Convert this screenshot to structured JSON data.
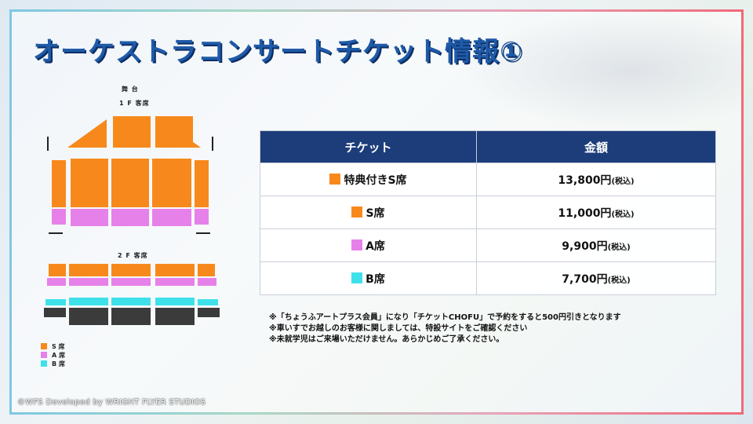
{
  "title": "オーケストラコンサートチケット情報①",
  "seat_map": {
    "stage_label": "舞 台",
    "floor1_label": "1 F 客席",
    "floor2_label": "2 F 客席",
    "legend": [
      {
        "label": "S 席",
        "color": "#f7891c"
      },
      {
        "label": "A 席",
        "color": "#e681e9"
      },
      {
        "label": "B 席",
        "color": "#3ee1ea"
      }
    ]
  },
  "price_table": {
    "headers": [
      "チケット",
      "金額"
    ],
    "rows": [
      {
        "ticket": "特典付きS席",
        "price": "13,800円",
        "tax": "(税込)",
        "color": "#f7891c"
      },
      {
        "ticket": "S席",
        "price": "11,000円",
        "tax": "(税込)",
        "color": "#f7891c"
      },
      {
        "ticket": "A席",
        "price": "9,900円",
        "tax": "(税込)",
        "color": "#e681e9"
      },
      {
        "ticket": "B席",
        "price": "7,700円",
        "tax": "(税込)",
        "color": "#3ee1ea"
      }
    ]
  },
  "notes": [
    "※「ちょうふアートプラス会員」になり「チケットCHOFU」で予約をすると500円引きとなります",
    "※車いすでお越しのお客様に関しましては、特設サイトをご確認ください",
    "※未就学児はご来場いただけません。あらかじめご了承ください。"
  ],
  "copyright": "©WFS  Developed by WRIGHT FLYER STUDIOS",
  "colors": {
    "header_bg": "#1d3c7a",
    "title": "#1f5aa8"
  }
}
